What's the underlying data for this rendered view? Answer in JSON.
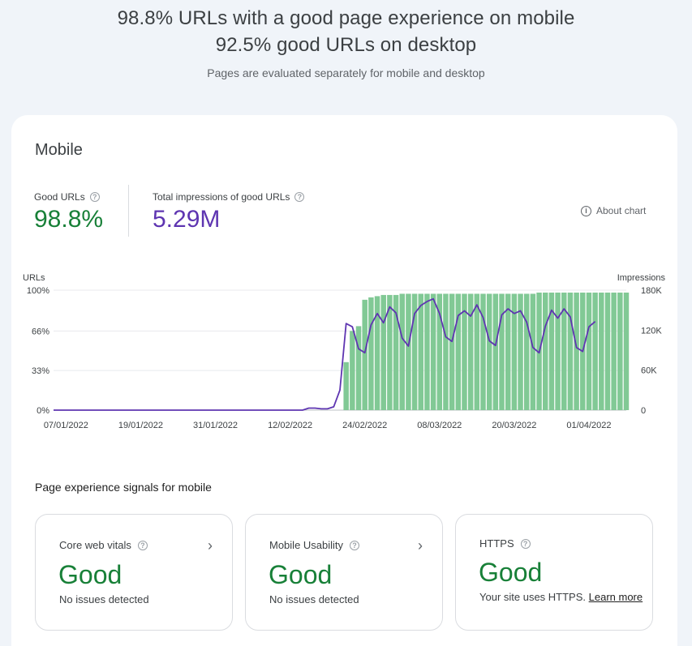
{
  "header": {
    "line1": "98.8% URLs with a good page experience on mobile",
    "line2": "92.5% good URLs on desktop",
    "subtitle": "Pages are evaluated separately for mobile and desktop"
  },
  "card": {
    "title": "Mobile",
    "good_urls": {
      "label": "Good URLs",
      "value": "98.8%",
      "color": "#188038"
    },
    "impressions": {
      "label": "Total impressions of good URLs",
      "value": "5.29M",
      "color": "#5e35b1"
    },
    "about_chart": "About chart",
    "section_title": "Page experience signals for mobile",
    "signals": [
      {
        "title": "Core web vitals",
        "status": "Good",
        "desc": "No issues detected",
        "has_chevron": true
      },
      {
        "title": "Mobile Usability",
        "status": "Good",
        "desc": "No issues detected",
        "has_chevron": true
      },
      {
        "title": "HTTPS",
        "status": "Good",
        "desc": "Your site uses HTTPS.",
        "link": "Learn more",
        "has_chevron": false
      }
    ]
  },
  "chart_data": {
    "type": "bar",
    "left_axis_label": "URLs",
    "right_axis_label": "Impressions",
    "left_ticks": [
      "100%",
      "66%",
      "33%",
      "0%"
    ],
    "right_ticks": [
      "180K",
      "120K",
      "60K",
      "0"
    ],
    "x_tick_labels": [
      "07/01/2022",
      "19/01/2022",
      "31/01/2022",
      "12/02/2022",
      "24/02/2022",
      "08/03/2022",
      "20/03/2022",
      "01/04/2022"
    ],
    "bar_color": "#81c995",
    "line_color": "#5e35b1",
    "bar_series": {
      "name": "Good URLs",
      "start_day": 47,
      "values": [
        40,
        66,
        70,
        92,
        94,
        95,
        96,
        96,
        96,
        97,
        97,
        97,
        97,
        97,
        97,
        97,
        97,
        97,
        97,
        97,
        97,
        97,
        97,
        97,
        97,
        97,
        97,
        97,
        97,
        97,
        97,
        98,
        98,
        98,
        98,
        98,
        98,
        98,
        98,
        98,
        98,
        98,
        98,
        98,
        98,
        98
      ]
    },
    "line_series": {
      "name": "Impressions",
      "points": [
        [
          0,
          0
        ],
        [
          40,
          0
        ],
        [
          41,
          3
        ],
        [
          42,
          3
        ],
        [
          43,
          2
        ],
        [
          44,
          2
        ],
        [
          45,
          5
        ],
        [
          46,
          30
        ],
        [
          47,
          130
        ],
        [
          48,
          125
        ],
        [
          49,
          92
        ],
        [
          50,
          86
        ],
        [
          51,
          128
        ],
        [
          52,
          145
        ],
        [
          53,
          131
        ],
        [
          54,
          155
        ],
        [
          55,
          146
        ],
        [
          56,
          108
        ],
        [
          57,
          96
        ],
        [
          58,
          145
        ],
        [
          59,
          157
        ],
        [
          60,
          163
        ],
        [
          61,
          167
        ],
        [
          62,
          145
        ],
        [
          63,
          110
        ],
        [
          64,
          103
        ],
        [
          65,
          142
        ],
        [
          66,
          149
        ],
        [
          67,
          141
        ],
        [
          68,
          158
        ],
        [
          69,
          139
        ],
        [
          70,
          104
        ],
        [
          71,
          97
        ],
        [
          72,
          143
        ],
        [
          73,
          152
        ],
        [
          74,
          145
        ],
        [
          75,
          149
        ],
        [
          76,
          132
        ],
        [
          77,
          94
        ],
        [
          78,
          86
        ],
        [
          79,
          126
        ],
        [
          80,
          150
        ],
        [
          81,
          138
        ],
        [
          82,
          152
        ],
        [
          83,
          140
        ],
        [
          84,
          94
        ],
        [
          85,
          88
        ],
        [
          86,
          125
        ],
        [
          87,
          133
        ]
      ]
    },
    "x_range": [
      0,
      92
    ],
    "left_range": [
      0,
      100
    ],
    "right_range": [
      0,
      180
    ]
  }
}
